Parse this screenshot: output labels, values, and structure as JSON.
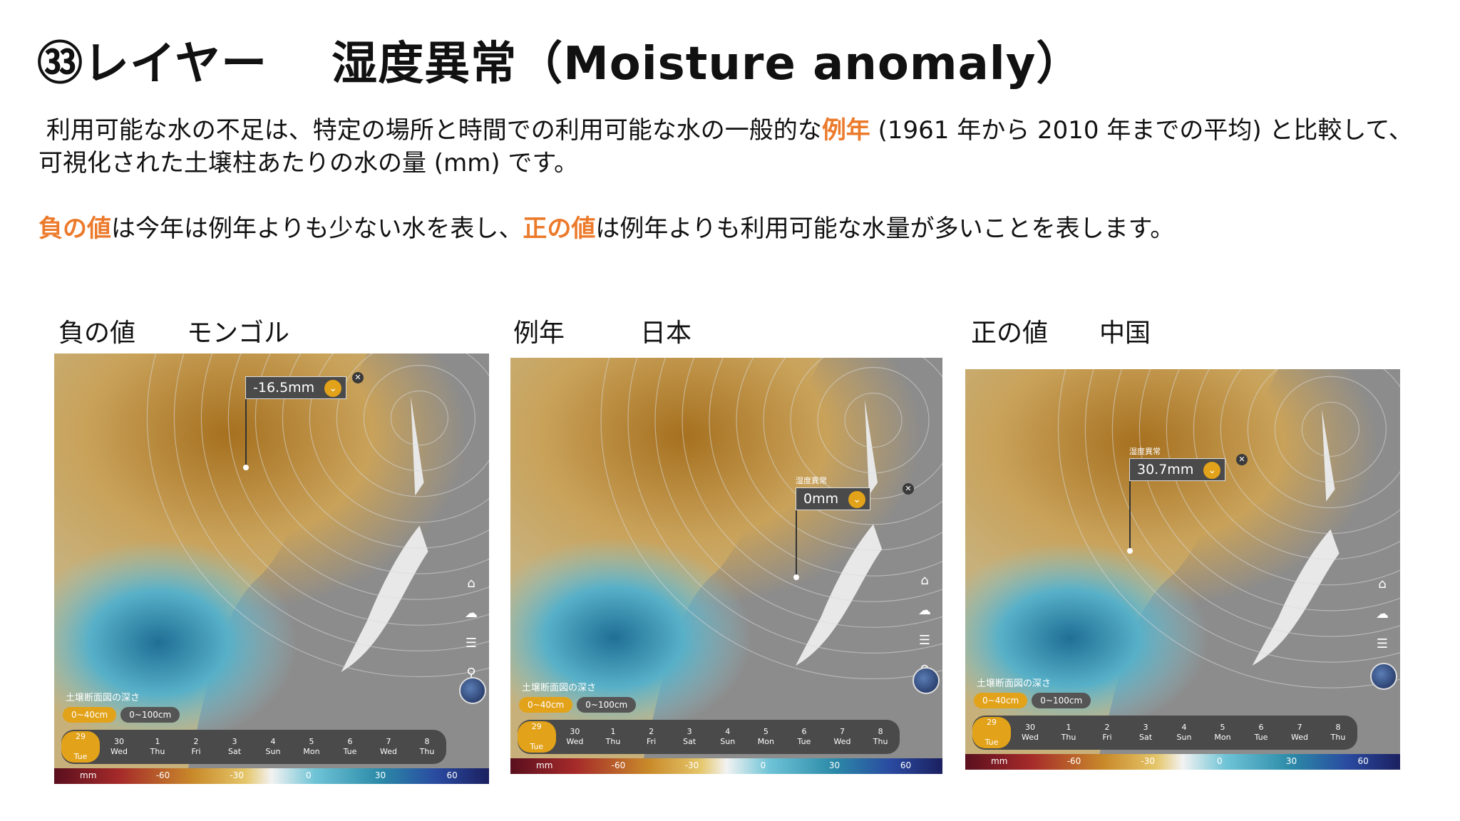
{
  "slide": {
    "title_left": "㉝レイヤー",
    "title_right": "湿度異常（Moisture anomaly）",
    "description": {
      "p1_part1": "利用可能な水の不足は、特定の場所と時間での利用可能な水の一般的な",
      "p1_highlight": "例年",
      "p1_part2": " (1961 年から 2010 年までの平均) と比較して、可視化された土壌柱あたりの水の量 (mm) です。",
      "p2_highlight1": "負の値",
      "p2_part1": "は今年は例年よりも少ない水を表し、",
      "p2_highlight2": "正の値",
      "p2_part2": "は例年よりも利用可能な水量が多いことを表します。"
    },
    "colors": {
      "highlight": "#ec7a2b",
      "tooltip_accent": "#e2a21a"
    }
  },
  "panels": [
    {
      "label": "負の値",
      "place": "モンゴル",
      "tooltip_value": "-16.5mm",
      "depth_label": "土壌断面図の深さ",
      "depth_tabs": [
        "0~40cm",
        "0~100cm"
      ],
      "days": [
        {
          "num": "29",
          "dow": "Tue"
        },
        {
          "num": "30",
          "dow": "Wed"
        },
        {
          "num": "1",
          "dow": "Thu"
        },
        {
          "num": "2",
          "dow": "Fri"
        },
        {
          "num": "3",
          "dow": "Sat"
        },
        {
          "num": "4",
          "dow": "Sun"
        },
        {
          "num": "5",
          "dow": "Mon"
        },
        {
          "num": "6",
          "dow": "Tue"
        },
        {
          "num": "7",
          "dow": "Wed"
        },
        {
          "num": "8",
          "dow": "Thu"
        }
      ],
      "scale": [
        "mm",
        "-60",
        "-30",
        "0",
        "30",
        "60"
      ]
    },
    {
      "label": "例年",
      "place": "日本",
      "tooltip_value": "0mm",
      "tooltip_caption": "湿度異常",
      "depth_label": "土壌断面図の深さ",
      "depth_tabs": [
        "0~40cm",
        "0~100cm"
      ],
      "days": [
        {
          "num": "29",
          "dow": "Tue"
        },
        {
          "num": "30",
          "dow": "Wed"
        },
        {
          "num": "1",
          "dow": "Thu"
        },
        {
          "num": "2",
          "dow": "Fri"
        },
        {
          "num": "3",
          "dow": "Sat"
        },
        {
          "num": "4",
          "dow": "Sun"
        },
        {
          "num": "5",
          "dow": "Mon"
        },
        {
          "num": "6",
          "dow": "Tue"
        },
        {
          "num": "7",
          "dow": "Wed"
        },
        {
          "num": "8",
          "dow": "Thu"
        }
      ],
      "scale": [
        "mm",
        "-60",
        "-30",
        "0",
        "30",
        "60"
      ]
    },
    {
      "label": "正の値",
      "place": "中国",
      "tooltip_value": "30.7mm",
      "tooltip_caption": "湿度異常",
      "depth_label": "土壌断面図の深さ",
      "depth_tabs": [
        "0~40cm",
        "0~100cm"
      ],
      "days": [
        {
          "num": "29",
          "dow": "Tue"
        },
        {
          "num": "30",
          "dow": "Wed"
        },
        {
          "num": "1",
          "dow": "Thu"
        },
        {
          "num": "2",
          "dow": "Fri"
        },
        {
          "num": "3",
          "dow": "Sat"
        },
        {
          "num": "4",
          "dow": "Sun"
        },
        {
          "num": "5",
          "dow": "Mon"
        },
        {
          "num": "6",
          "dow": "Tue"
        },
        {
          "num": "7",
          "dow": "Wed"
        },
        {
          "num": "8",
          "dow": "Thu"
        }
      ],
      "scale": [
        "mm",
        "-60",
        "-30",
        "0",
        "30",
        "60"
      ]
    }
  ],
  "icons": [
    "home-icon",
    "cloud-icon",
    "menu-icon",
    "search-icon",
    "close-icon",
    "chevron-down-icon"
  ]
}
